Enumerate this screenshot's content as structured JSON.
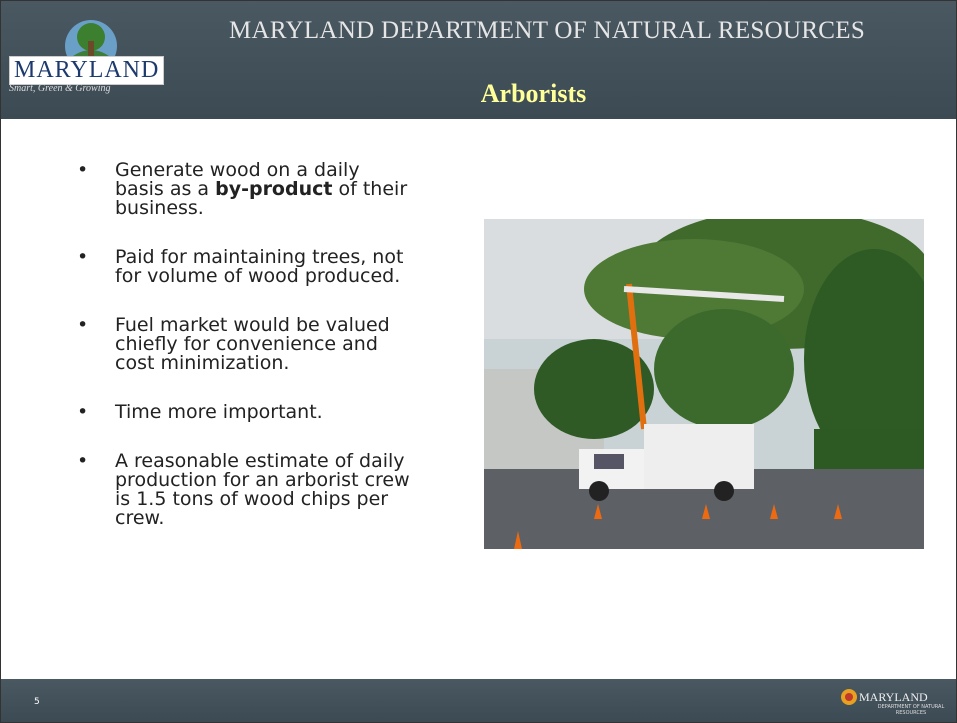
{
  "header": {
    "logo_name": "MARYLAND",
    "logo_tagline": "Smart, Green & Growing",
    "organization": "MARYLAND DEPARTMENT OF NATURAL RESOURCES",
    "title": "Arborists"
  },
  "bullets": [
    {
      "segments": [
        {
          "text": "Generate wood on a daily basis as a ",
          "bold": false
        },
        {
          "text": "by-product",
          "bold": true
        },
        {
          "text": " of their business.",
          "bold": false
        }
      ]
    },
    {
      "segments": [
        {
          "text": "Paid for maintaining trees, not for volume of wood produced.",
          "bold": false
        }
      ]
    },
    {
      "segments": [
        {
          "text": "Fuel market would be valued chiefly for convenience and cost minimization.",
          "bold": false
        }
      ]
    },
    {
      "segments": [
        {
          "text": "Time more important.",
          "bold": false
        }
      ]
    },
    {
      "segments": [
        {
          "text": "A reasonable estimate of daily production for an arborist crew is 1.5 tons of wood chips per crew.",
          "bold": false
        }
      ]
    }
  ],
  "footer": {
    "page_number": "5",
    "logo_name": "MARYLAND",
    "logo_subtitle": "DEPARTMENT OF NATURAL RESOURCES"
  }
}
